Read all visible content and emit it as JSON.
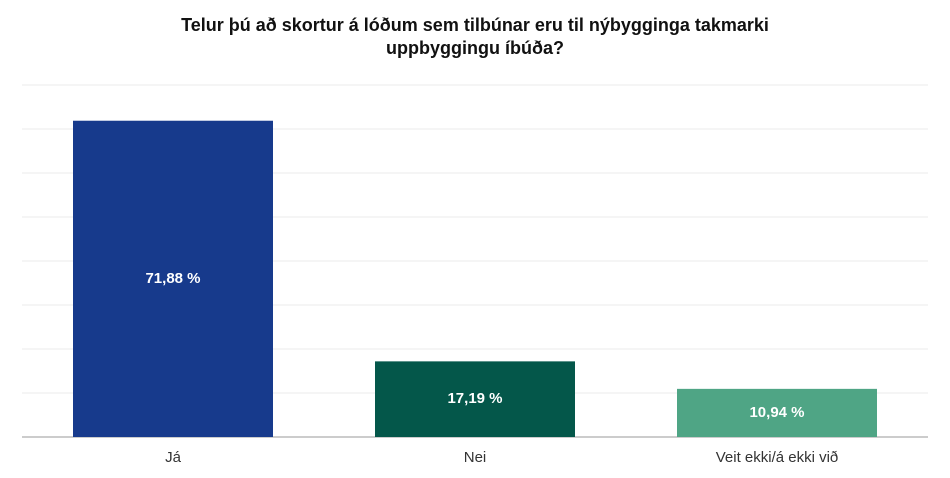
{
  "chart_data": {
    "type": "bar",
    "title": "Telur þú að skortur á lóðum sem tilbúnar eru til nýbygginga takmarki uppbyggingu íbúða?",
    "categories": [
      "Já",
      "Nei",
      "Veit ekki/á ekki við"
    ],
    "values": [
      71.88,
      17.19,
      10.94
    ],
    "value_labels": [
      "71,88 %",
      "17,19 %",
      "10,94 %"
    ],
    "colors": [
      "#173a8c",
      "#04574a",
      "#4fa585"
    ],
    "ylim": [
      0,
      80
    ],
    "yticks": [
      0,
      10,
      20,
      30,
      40,
      50,
      60,
      70,
      80
    ],
    "grid": true
  }
}
